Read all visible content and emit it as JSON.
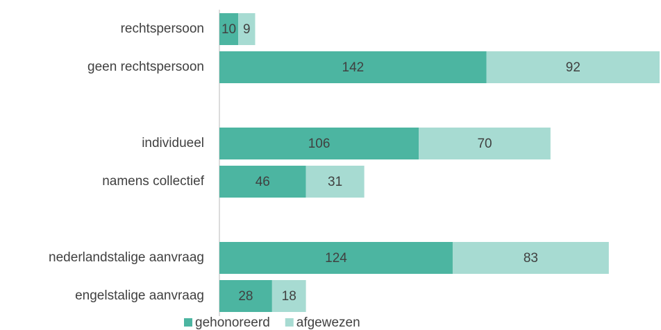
{
  "chart_data": {
    "type": "stacked-barh",
    "categories": [
      "rechtspersoon",
      "geen rechtspersoon",
      null,
      "individueel",
      "namens collectief",
      null,
      "nederlandstalige aanvraag",
      "engelstalige aanvraag"
    ],
    "series": [
      {
        "name": "gehonoreerd",
        "color": "#4cb5a1",
        "values": [
          10,
          142,
          null,
          106,
          46,
          null,
          124,
          28
        ]
      },
      {
        "name": "afgewezen",
        "color": "#a7dbd2",
        "values": [
          9,
          92,
          null,
          70,
          31,
          null,
          83,
          18
        ]
      }
    ],
    "legend": "bottom"
  }
}
